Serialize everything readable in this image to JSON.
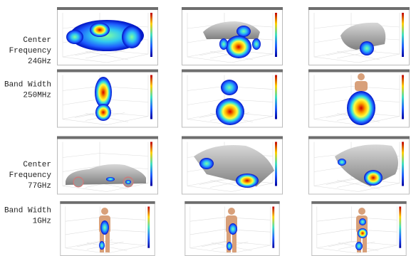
{
  "rows": [
    {
      "label": [
        "Center",
        "Frequency",
        "24GHz"
      ]
    },
    {
      "label": [
        "Band Width",
        "250MHz"
      ]
    },
    {
      "label": [
        "Center",
        "Frequency",
        "77GHz"
      ]
    },
    {
      "label": [
        "Band Width",
        "1GHz"
      ]
    }
  ]
}
